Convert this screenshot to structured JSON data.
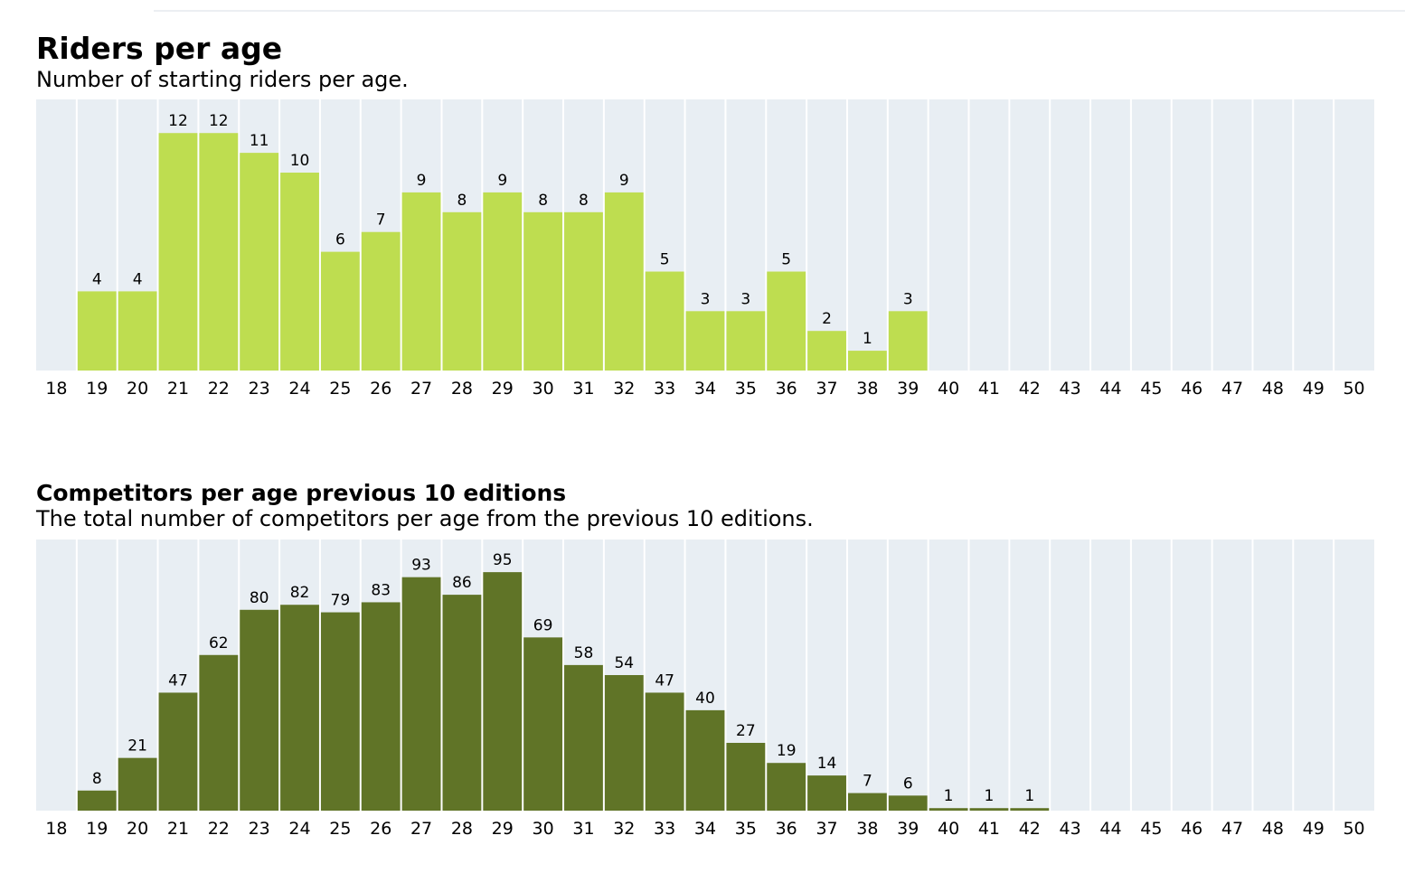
{
  "charts": [
    {
      "title": "Riders per age",
      "subtitle": "Number of starting riders per age.",
      "bar_color": "#bedd50",
      "chart_data": {
        "type": "bar",
        "categories": [
          "18",
          "19",
          "20",
          "21",
          "22",
          "23",
          "24",
          "25",
          "26",
          "27",
          "28",
          "29",
          "30",
          "31",
          "32",
          "33",
          "34",
          "35",
          "36",
          "37",
          "38",
          "39",
          "40",
          "41",
          "42",
          "43",
          "44",
          "45",
          "46",
          "47",
          "48",
          "49",
          "50"
        ],
        "values": [
          0,
          4,
          4,
          12,
          12,
          11,
          10,
          6,
          7,
          9,
          8,
          9,
          8,
          8,
          9,
          5,
          3,
          3,
          5,
          2,
          1,
          3,
          0,
          0,
          0,
          0,
          0,
          0,
          0,
          0,
          0,
          0,
          0
        ],
        "ylim": [
          0,
          13.7
        ],
        "grid": true
      }
    },
    {
      "title": "Competitors per age previous 10 editions",
      "subtitle": "The total number of competitors per age from the previous 10 editions.",
      "bar_color": "#607427",
      "chart_data": {
        "type": "bar",
        "categories": [
          "18",
          "19",
          "20",
          "21",
          "22",
          "23",
          "24",
          "25",
          "26",
          "27",
          "28",
          "29",
          "30",
          "31",
          "32",
          "33",
          "34",
          "35",
          "36",
          "37",
          "38",
          "39",
          "40",
          "41",
          "42",
          "43",
          "44",
          "45",
          "46",
          "47",
          "48",
          "49",
          "50"
        ],
        "values": [
          0,
          8,
          21,
          47,
          62,
          80,
          82,
          79,
          83,
          93,
          86,
          95,
          69,
          58,
          54,
          47,
          40,
          27,
          19,
          14,
          7,
          6,
          1,
          1,
          1,
          0,
          0,
          0,
          0,
          0,
          0,
          0,
          0
        ],
        "ylim": [
          0,
          108
        ],
        "grid": true
      }
    }
  ],
  "colors": {
    "plot_background": "#e8eef3",
    "gridline": "#ffffff",
    "label_text": "#000000"
  }
}
